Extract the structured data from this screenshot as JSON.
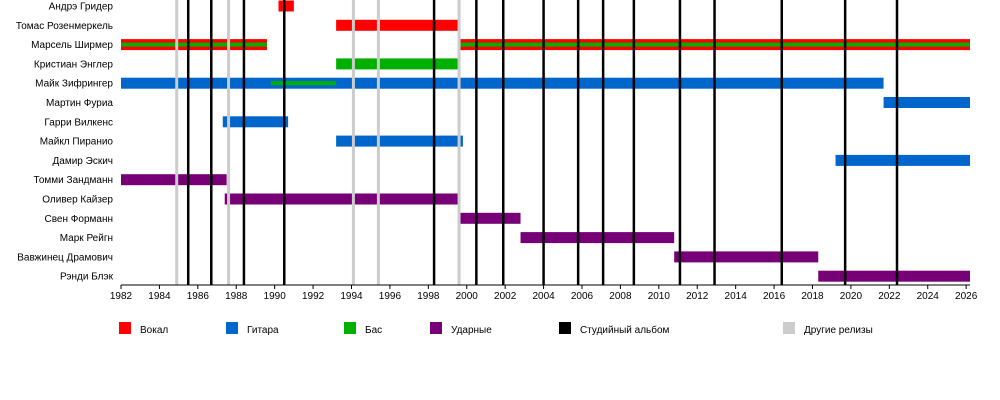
{
  "chart_data": {
    "type": "timeline",
    "x_range": [
      1982,
      2026.2
    ],
    "x_ticks": [
      1982,
      1984,
      1986,
      1988,
      1990,
      1992,
      1994,
      1996,
      1998,
      2000,
      2002,
      2004,
      2006,
      2008,
      2010,
      2012,
      2014,
      2016,
      2018,
      2020,
      2022,
      2024,
      2026
    ],
    "members": [
      "Андрэ Гридер",
      "Томас Розенмеркель",
      "Марсель Ширмер",
      "Кристиан Энглер",
      "Майк Зифрингер",
      "Мартин Фуриа",
      "Гарри Вилкенс",
      "Майкл Пиранио",
      "Дамир Эскич",
      "Томми Зандманн",
      "Оливер Кайзер",
      "Свен Форманн",
      "Марк Рейгн",
      "Вавжинец Драмович",
      "Рэнди Блэк"
    ],
    "roles": {
      "vocals": {
        "label": "Вокал",
        "color": "#ff0000"
      },
      "guitar": {
        "label": "Гитара",
        "color": "#0066cc"
      },
      "bass": {
        "label": "Бас",
        "color": "#00b000"
      },
      "drums": {
        "label": "Ударные",
        "color": "#770077"
      },
      "studio": {
        "label": "Студийный альбом",
        "color": "#000000"
      },
      "other": {
        "label": "Другие релизы",
        "color": "#cccccc"
      }
    },
    "legend_order": [
      "vocals",
      "guitar",
      "bass",
      "drums",
      "studio",
      "other"
    ],
    "bars": [
      {
        "member": 0,
        "role": "vocals",
        "start": 1990.2,
        "end": 1991.0
      },
      {
        "member": 1,
        "role": "vocals",
        "start": 1993.2,
        "end": 1999.6
      },
      {
        "member": 2,
        "role": "vocals",
        "start": 1982.0,
        "end": 1989.6
      },
      {
        "member": 2,
        "role": "vocals",
        "start": 1999.6,
        "end": 2026.2
      },
      {
        "member": 3,
        "role": "bass",
        "start": 1993.2,
        "end": 1999.6
      },
      {
        "member": 4,
        "role": "guitar",
        "start": 1982.0,
        "end": 2021.7
      },
      {
        "member": 5,
        "role": "guitar",
        "start": 2021.7,
        "end": 2026.2
      },
      {
        "member": 6,
        "role": "guitar",
        "start": 1987.3,
        "end": 1990.7
      },
      {
        "member": 7,
        "role": "guitar",
        "start": 1993.2,
        "end": 1999.8
      },
      {
        "member": 8,
        "role": "guitar",
        "start": 2019.2,
        "end": 2026.2
      },
      {
        "member": 9,
        "role": "drums",
        "start": 1982.0,
        "end": 1987.5
      },
      {
        "member": 10,
        "role": "drums",
        "start": 1987.4,
        "end": 1999.6
      },
      {
        "member": 11,
        "role": "drums",
        "start": 1999.6,
        "end": 2002.8
      },
      {
        "member": 12,
        "role": "drums",
        "start": 2002.8,
        "end": 2010.8
      },
      {
        "member": 13,
        "role": "drums",
        "start": 2010.8,
        "end": 2018.3
      },
      {
        "member": 14,
        "role": "drums",
        "start": 2018.3,
        "end": 2026.2
      }
    ],
    "secondary_bars": [
      {
        "member": 2,
        "role": "bass",
        "start": 1982.0,
        "end": 1989.6
      },
      {
        "member": 2,
        "role": "bass",
        "start": 1999.6,
        "end": 2026.2
      },
      {
        "member": 4,
        "role": "bass",
        "start": 1989.8,
        "end": 1993.2
      }
    ],
    "studio_albums": [
      1985.5,
      1986.7,
      1988.4,
      1990.5,
      1998.3,
      2000.5,
      2001.9,
      2004.0,
      2005.8,
      2007.1,
      2008.7,
      2011.1,
      2012.9,
      2016.4,
      2019.7,
      2022.4
    ],
    "other_releases": [
      1984.9,
      1987.6,
      1994.1,
      1995.4,
      1999.6
    ]
  }
}
